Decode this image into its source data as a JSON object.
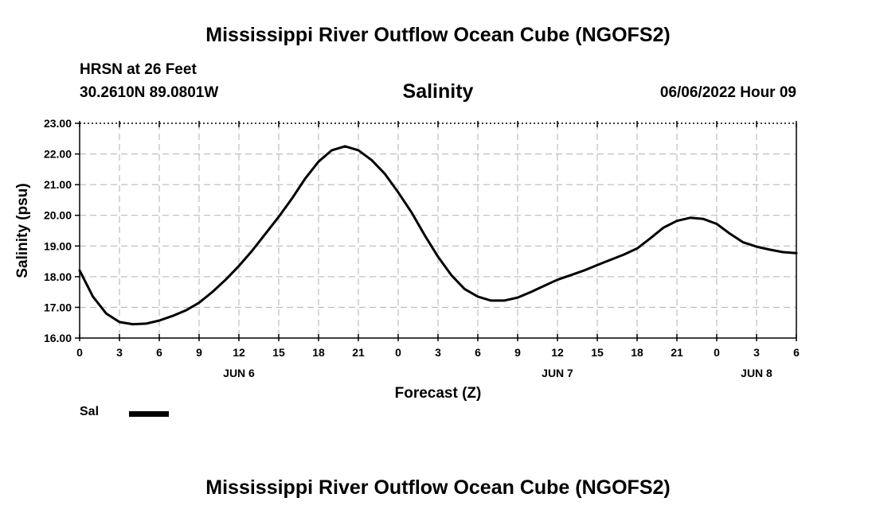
{
  "page_title": "Mississippi River Outflow Ocean Cube (NGOFS2)",
  "footer_title": "Mississippi River Outflow Ocean Cube (NGOFS2)",
  "station": {
    "name": "HRSN at 26 Feet",
    "coords": "30.2610N  89.0801W",
    "timestamp": "06/06/2022 Hour 09"
  },
  "chart_data": {
    "type": "line",
    "title": "Salinity",
    "xlabel": "Forecast (Z)",
    "ylabel": "Salinity (psu)",
    "ylim": [
      16.0,
      23.0
    ],
    "xlim": [
      0,
      54
    ],
    "grid": true,
    "y_ticks": [
      "16.00",
      "17.00",
      "18.00",
      "19.00",
      "20.00",
      "21.00",
      "22.00",
      "23.00"
    ],
    "x_ticks": [
      {
        "hour": 0,
        "label": "0"
      },
      {
        "hour": 3,
        "label": "3"
      },
      {
        "hour": 6,
        "label": "6"
      },
      {
        "hour": 9,
        "label": "9"
      },
      {
        "hour": 12,
        "label": "12"
      },
      {
        "hour": 15,
        "label": "15"
      },
      {
        "hour": 18,
        "label": "18"
      },
      {
        "hour": 21,
        "label": "21"
      },
      {
        "hour": 24,
        "label": "0"
      },
      {
        "hour": 27,
        "label": "3"
      },
      {
        "hour": 30,
        "label": "6"
      },
      {
        "hour": 33,
        "label": "9"
      },
      {
        "hour": 36,
        "label": "12"
      },
      {
        "hour": 39,
        "label": "15"
      },
      {
        "hour": 42,
        "label": "18"
      },
      {
        "hour": 45,
        "label": "21"
      },
      {
        "hour": 48,
        "label": "0"
      },
      {
        "hour": 51,
        "label": "3"
      },
      {
        "hour": 54,
        "label": "6"
      }
    ],
    "day_labels": [
      {
        "hour": 12,
        "label": "JUN 6"
      },
      {
        "hour": 36,
        "label": "JUN 7"
      },
      {
        "hour": 51,
        "label": "JUN 8"
      }
    ],
    "series": [
      {
        "name": "Sal",
        "color": "#000000",
        "x": [
          0,
          1,
          2,
          3,
          4,
          5,
          6,
          7,
          8,
          9,
          10,
          11,
          12,
          13,
          14,
          15,
          16,
          17,
          18,
          19,
          20,
          21,
          22,
          23,
          24,
          25,
          26,
          27,
          28,
          29,
          30,
          31,
          32,
          33,
          34,
          35,
          36,
          37,
          38,
          39,
          40,
          41,
          42,
          43,
          44,
          45,
          46,
          47,
          48,
          49,
          50,
          51,
          52,
          53,
          54
        ],
        "values": [
          18.2,
          17.35,
          16.8,
          16.52,
          16.45,
          16.47,
          16.57,
          16.72,
          16.9,
          17.15,
          17.5,
          17.9,
          18.35,
          18.85,
          19.4,
          19.95,
          20.55,
          21.2,
          21.75,
          22.12,
          22.25,
          22.12,
          21.8,
          21.35,
          20.75,
          20.1,
          19.35,
          18.65,
          18.05,
          17.6,
          17.35,
          17.22,
          17.22,
          17.32,
          17.5,
          17.7,
          17.9,
          18.05,
          18.2,
          18.38,
          18.55,
          18.72,
          18.92,
          19.25,
          19.6,
          19.82,
          19.92,
          19.88,
          19.72,
          19.4,
          19.12,
          18.98,
          18.88,
          18.8,
          18.77
        ]
      }
    ]
  }
}
